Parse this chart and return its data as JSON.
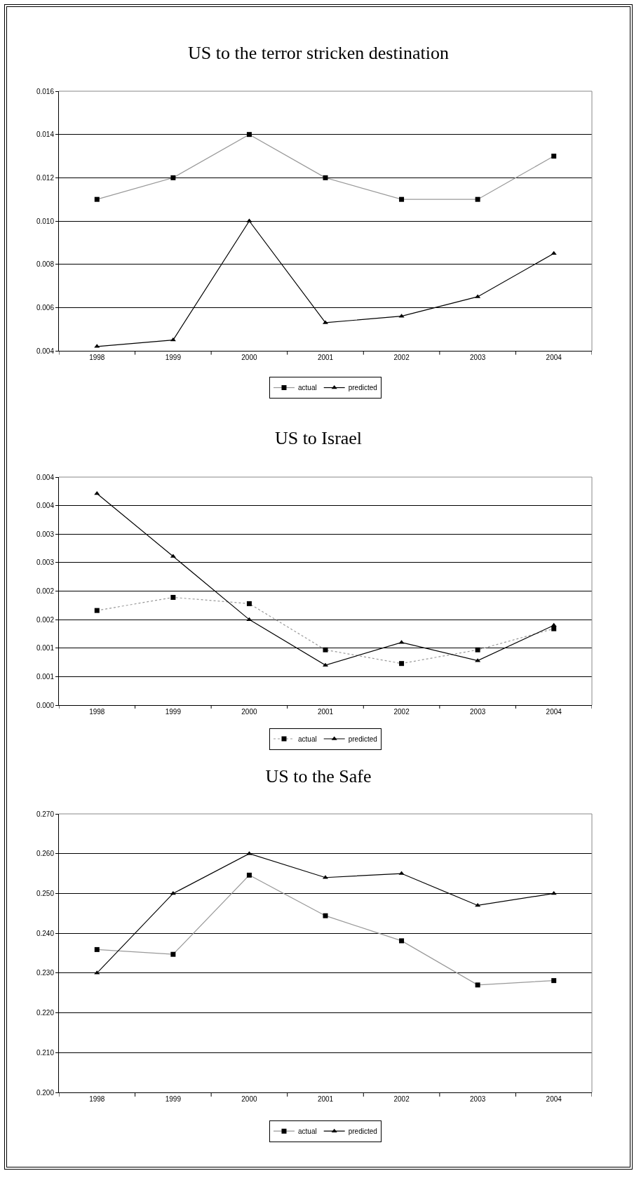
{
  "chart_data": [
    {
      "type": "line",
      "title": "US to the terror stricken destination",
      "categories": [
        "1998",
        "1999",
        "2000",
        "2001",
        "2002",
        "2003",
        "2004"
      ],
      "series": [
        {
          "name": "actual",
          "color": "#999999",
          "marker": "square",
          "line_style": "solid",
          "values": [
            0.011,
            0.012,
            0.014,
            0.012,
            0.011,
            0.011,
            0.013
          ]
        },
        {
          "name": "predicted",
          "color": "#000000",
          "marker": "triangle",
          "line_style": "solid",
          "values": [
            0.0042,
            0.0045,
            0.01,
            0.0053,
            0.0056,
            0.0065,
            0.0085
          ]
        }
      ],
      "ylim": [
        0.004,
        0.016
      ],
      "yticks": [
        {
          "value": 0.004,
          "label": "0.004"
        },
        {
          "value": 0.006,
          "label": "0.006"
        },
        {
          "value": 0.008,
          "label": "0.008"
        },
        {
          "value": 0.01,
          "label": "0.010"
        },
        {
          "value": 0.012,
          "label": "0.012"
        },
        {
          "value": 0.014,
          "label": "0.014"
        },
        {
          "value": 0.016,
          "label": "0.016"
        }
      ],
      "grid": "y",
      "legend": "bottom"
    },
    {
      "type": "line",
      "title": "US to Israel",
      "categories": [
        "1998",
        "1999",
        "2000",
        "2001",
        "2002",
        "2003",
        "2004"
      ],
      "series": [
        {
          "name": "actual",
          "color": "#999999",
          "marker": "square",
          "line_style": "dotted",
          "values": [
            0.00166,
            0.00189,
            0.00178,
            0.00097,
            0.00073,
            0.00097,
            0.00134
          ]
        },
        {
          "name": "predicted",
          "color": "#000000",
          "marker": "triangle",
          "line_style": "solid",
          "values": [
            0.00371,
            0.00261,
            0.0015,
            0.0007,
            0.0011,
            0.00078,
            0.0014
          ]
        }
      ],
      "ylim": [
        0,
        0.004
      ],
      "yticks": [
        {
          "value": 0,
          "label": "0.000"
        },
        {
          "value": 0.0005,
          "label": "0.001"
        },
        {
          "value": 0.001,
          "label": "0.001"
        },
        {
          "value": 0.0015,
          "label": "0.002"
        },
        {
          "value": 0.002,
          "label": "0.002"
        },
        {
          "value": 0.0025,
          "label": "0.003"
        },
        {
          "value": 0.003,
          "label": "0.003"
        },
        {
          "value": 0.0035,
          "label": "0.004"
        },
        {
          "value": 0.004,
          "label": "0.004"
        }
      ],
      "grid": "y",
      "legend": "bottom"
    },
    {
      "type": "line",
      "title": "US to the Safe",
      "categories": [
        "1998",
        "1999",
        "2000",
        "2001",
        "2002",
        "2003",
        "2004"
      ],
      "series": [
        {
          "name": "actual",
          "color": "#999999",
          "marker": "square",
          "line_style": "solid",
          "values": [
            0.2359,
            0.2347,
            0.2546,
            0.2444,
            0.2381,
            0.227,
            0.2281
          ]
        },
        {
          "name": "predicted",
          "color": "#000000",
          "marker": "triangle",
          "line_style": "solid",
          "values": [
            0.23,
            0.25,
            0.26,
            0.254,
            0.255,
            0.247,
            0.25
          ]
        }
      ],
      "ylim": [
        0.2,
        0.27
      ],
      "yticks": [
        {
          "value": 0.2,
          "label": "0.200"
        },
        {
          "value": 0.21,
          "label": "0.210"
        },
        {
          "value": 0.22,
          "label": "0.220"
        },
        {
          "value": 0.23,
          "label": "0.230"
        },
        {
          "value": 0.24,
          "label": "0.240"
        },
        {
          "value": 0.25,
          "label": "0.250"
        },
        {
          "value": 0.26,
          "label": "0.260"
        },
        {
          "value": 0.27,
          "label": "0.270"
        }
      ],
      "grid": "y",
      "legend": "bottom"
    }
  ]
}
